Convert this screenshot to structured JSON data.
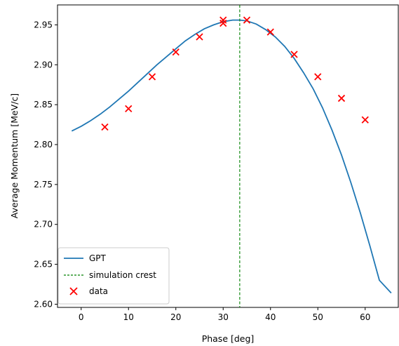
{
  "chart_data": {
    "type": "line",
    "xlabel": "Phase [deg]",
    "ylabel": "Average Momentum [MeV/c]",
    "xlim": [
      -5,
      67
    ],
    "ylim": [
      2.596,
      2.975
    ],
    "xticks": [
      0,
      10,
      20,
      30,
      40,
      50,
      60
    ],
    "xtick_labels": [
      "0",
      "10",
      "20",
      "30",
      "40",
      "50",
      "60"
    ],
    "yticks": [
      2.6,
      2.65,
      2.7,
      2.75,
      2.8,
      2.85,
      2.9,
      2.95
    ],
    "ytick_labels": [
      "2.60",
      "2.65",
      "2.70",
      "2.75",
      "2.80",
      "2.85",
      "2.90",
      "2.95"
    ],
    "grid": false,
    "legend_position": "lower-left",
    "series": [
      {
        "name": "GPT",
        "kind": "line",
        "color": "#1f77b4",
        "x": [
          -2,
          0,
          2,
          4,
          6,
          8,
          10,
          12,
          14,
          16,
          18,
          20,
          22,
          24,
          26,
          28,
          30,
          32,
          33.5,
          35,
          37,
          39,
          41,
          43,
          45,
          47,
          49,
          51,
          53,
          55,
          57,
          59,
          61,
          63,
          65.5
        ],
        "y": [
          2.817,
          2.823,
          2.83,
          2.838,
          2.847,
          2.857,
          2.867,
          2.878,
          2.889,
          2.9,
          2.91,
          2.92,
          2.93,
          2.938,
          2.945,
          2.95,
          2.954,
          2.956,
          2.956,
          2.955,
          2.951,
          2.944,
          2.935,
          2.923,
          2.908,
          2.89,
          2.87,
          2.846,
          2.818,
          2.787,
          2.752,
          2.714,
          2.673,
          2.63,
          2.614
        ]
      },
      {
        "name": "simulation crest",
        "kind": "vline",
        "color": "#008000",
        "x": 33.5
      },
      {
        "name": "data",
        "kind": "scatter",
        "color": "#ff0000",
        "x": [
          5,
          10,
          15,
          20,
          25,
          30,
          30,
          35,
          40,
          45,
          50,
          55,
          60
        ],
        "y": [
          2.822,
          2.845,
          2.885,
          2.916,
          2.935,
          2.952,
          2.956,
          2.956,
          2.941,
          2.913,
          2.885,
          2.858,
          2.831
        ]
      }
    ]
  }
}
